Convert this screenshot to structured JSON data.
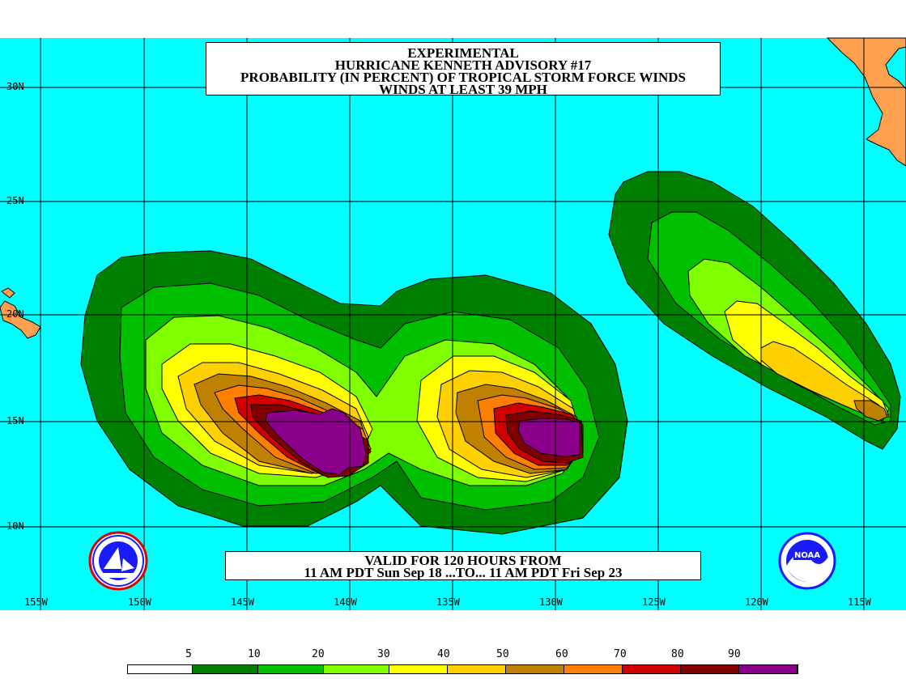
{
  "title": {
    "line1": "EXPERIMENTAL",
    "line2": "HURRICANE KENNETH ADVISORY #17",
    "line3": "PROBABILITY (IN PERCENT) OF TROPICAL STORM FORCE WINDS",
    "line4": "WINDS AT LEAST 39 MPH"
  },
  "valid": {
    "line1": "VALID FOR 120 HOURS FROM",
    "line2": "11 AM PDT Sun Sep 18 ...TO... 11 AM PDT Fri Sep 23"
  },
  "latitudes": [
    "30N",
    "25N",
    "20N",
    "15N",
    "10N"
  ],
  "longitudes": [
    "155W",
    "150W",
    "145W",
    "140W",
    "135W",
    "130W",
    "125W",
    "120W",
    "115W"
  ],
  "legend": {
    "values": [
      "5",
      "10",
      "20",
      "30",
      "40",
      "50",
      "60",
      "70",
      "80",
      "90"
    ],
    "colors": [
      "#ffffff",
      "#008000",
      "#00c000",
      "#80ff00",
      "#ffff00",
      "#ffd000",
      "#c08000",
      "#ff8000",
      "#d00000",
      "#800000",
      "#8b008b"
    ]
  },
  "colors": {
    "ocean": "#00ffff",
    "land": "#ffa050",
    "grid": "#000000"
  },
  "logos": {
    "left": "nws-logo-icon",
    "right": "noaa-logo-icon"
  }
}
